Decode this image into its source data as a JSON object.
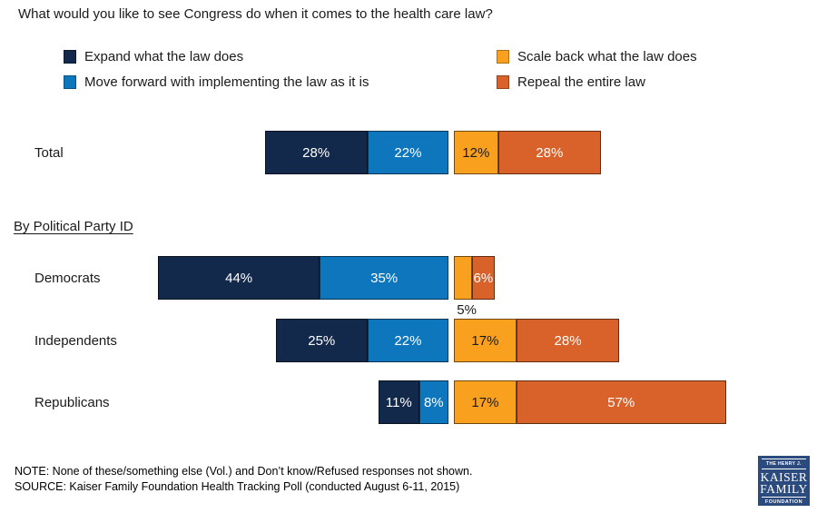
{
  "title": "What would you like to see Congress do when it comes to the health care law?",
  "section_heading": "By Political Party ID",
  "legend": [
    {
      "label": "Expand what the law does",
      "color": "#13294B",
      "value_label_color": "#FFFFFF"
    },
    {
      "label": "Move forward with implementing the law as it is",
      "color": "#0E76BD",
      "value_label_color": "#FFFFFF"
    },
    {
      "label": "Scale back what the law does",
      "color": "#FAA01F",
      "value_label_color": "#1A1A1A"
    },
    {
      "label": "Repeal the entire law",
      "color": "#D9622B",
      "value_label_color": "#FFFFFF"
    }
  ],
  "chart_data": {
    "type": "bar",
    "orientation": "horizontal-diverging-stacked",
    "value_format": "percent",
    "categories": [
      "Total",
      "Democrats",
      "Independents",
      "Republicans"
    ],
    "series": [
      {
        "name": "Expand what the law does",
        "values": [
          28,
          44,
          25,
          11
        ]
      },
      {
        "name": "Move forward with implementing the law as it is",
        "values": [
          22,
          35,
          22,
          8
        ]
      },
      {
        "name": "Scale back what the law does",
        "values": [
          12,
          5,
          17,
          17
        ]
      },
      {
        "name": "Repeal the entire law",
        "values": [
          28,
          6,
          28,
          57
        ]
      }
    ],
    "outside_labels": [
      {
        "category": "Democrats",
        "series_index": 2
      }
    ],
    "legend_position": "top",
    "grid": false
  },
  "note": "NOTE: None of these/something else (Vol.) and Don’t know/Refused responses not shown.",
  "source": "SOURCE: Kaiser Family Foundation Health Tracking Poll (conducted August 6-11, 2015)",
  "logo": {
    "line1": "THE HENRY J.",
    "line2": "KAISER",
    "line3": "FAMILY",
    "line4": "FOUNDATION",
    "bg_color": "#2B4A7D"
  }
}
